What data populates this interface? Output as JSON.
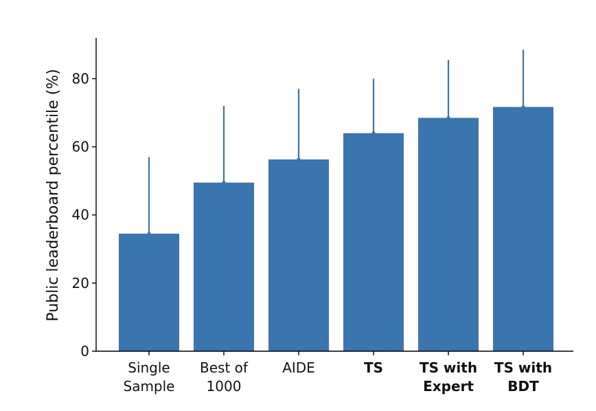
{
  "chart_data": {
    "type": "bar",
    "title": "",
    "xlabel": "",
    "ylabel": "Public leaderboard percentile (%)",
    "ylim": [
      0,
      92
    ],
    "yticks": [
      0,
      20,
      40,
      60,
      80
    ],
    "categories": [
      {
        "lines": [
          "Single",
          "Sample"
        ],
        "bold": false
      },
      {
        "lines": [
          "Best of",
          "1000"
        ],
        "bold": false
      },
      {
        "lines": [
          "AIDE"
        ],
        "bold": false
      },
      {
        "lines": [
          "TS"
        ],
        "bold": true
      },
      {
        "lines": [
          "TS with",
          "Expert"
        ],
        "bold": true
      },
      {
        "lines": [
          "TS with",
          "BDT"
        ],
        "bold": true
      }
    ],
    "values": [
      34.5,
      49.5,
      56.3,
      64.0,
      68.5,
      71.7
    ],
    "error_upper": [
      57.0,
      72.0,
      77.0,
      80.0,
      85.5,
      88.5
    ],
    "bar_color": "#3b75af",
    "grid": false
  }
}
